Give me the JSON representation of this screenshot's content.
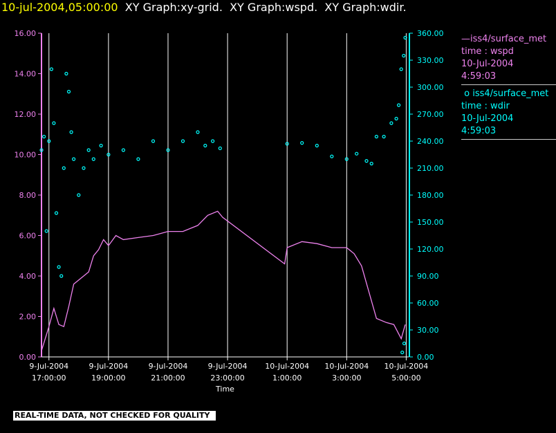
{
  "header": {
    "time": "10-jul-2004,05:00:00",
    "rest": "  XY Graph:xy-grid.  XY Graph:wspd.  XY Graph:wdir."
  },
  "chart_data": {
    "type": "scatter",
    "x_axis": {
      "label": "Time",
      "range": [
        "9-Jul-2004 16:45",
        "10-Jul-2004 05:05"
      ],
      "ticks": [
        {
          "date": "9-Jul-2004",
          "time": "17:00:00",
          "t": "9-Jul-2004 17:00"
        },
        {
          "date": "9-Jul-2004",
          "time": "19:00:00",
          "t": "9-Jul-2004 19:00"
        },
        {
          "date": "9-Jul-2004",
          "time": "21:00:00",
          "t": "9-Jul-2004 21:00"
        },
        {
          "date": "9-Jul-2004",
          "time": "23:00:00",
          "t": "9-Jul-2004 23:00"
        },
        {
          "date": "10-Jul-2004",
          "time": "1:00:00",
          "t": "10-Jul-2004 01:00"
        },
        {
          "date": "10-Jul-2004",
          "time": "3:00:00",
          "t": "10-Jul-2004 03:00"
        },
        {
          "date": "10-Jul-2004",
          "time": "5:00:00",
          "t": "10-Jul-2004 05:00"
        }
      ],
      "gridlines": true
    },
    "y_left": {
      "range": [
        0,
        16
      ],
      "ticks": [
        "0.00",
        "2.00",
        "4.00",
        "6.00",
        "8.00",
        "10.00",
        "12.00",
        "14.00",
        "16.00"
      ],
      "color": "#ee82ee"
    },
    "y_right": {
      "range": [
        0,
        360
      ],
      "ticks": [
        "0.00",
        "30.00",
        "60.00",
        "90.00",
        "120.00",
        "150.00",
        "180.00",
        "210.00",
        "240.00",
        "270.00",
        "300.00",
        "330.00",
        "360.00"
      ],
      "color": "#00ffff"
    },
    "legend_position": "right",
    "series": [
      {
        "name": "iss4/surface_met",
        "field": "time : wspd",
        "date": "10-Jul-2004",
        "time": "4:59:03",
        "axis": "left",
        "color": "#ee82ee",
        "style": "line",
        "points": [
          [
            "9-Jul-2004 16:45",
            0.3
          ],
          [
            "9-Jul-2004 17:00",
            1.5
          ],
          [
            "9-Jul-2004 17:10",
            2.4
          ],
          [
            "9-Jul-2004 17:20",
            1.6
          ],
          [
            "9-Jul-2004 17:30",
            1.5
          ],
          [
            "9-Jul-2004 17:40",
            2.5
          ],
          [
            "9-Jul-2004 17:50",
            3.6
          ],
          [
            "9-Jul-2004 18:00",
            3.8
          ],
          [
            "9-Jul-2004 18:10",
            4.0
          ],
          [
            "9-Jul-2004 18:20",
            4.2
          ],
          [
            "9-Jul-2004 18:30",
            5.0
          ],
          [
            "9-Jul-2004 18:40",
            5.3
          ],
          [
            "9-Jul-2004 18:50",
            5.8
          ],
          [
            "9-Jul-2004 19:00",
            5.5
          ],
          [
            "9-Jul-2004 19:15",
            6.0
          ],
          [
            "9-Jul-2004 19:30",
            5.8
          ],
          [
            "9-Jul-2004 20:00",
            5.9
          ],
          [
            "9-Jul-2004 20:30",
            6.0
          ],
          [
            "9-Jul-2004 21:00",
            6.2
          ],
          [
            "9-Jul-2004 21:30",
            6.2
          ],
          [
            "9-Jul-2004 22:00",
            6.5
          ],
          [
            "9-Jul-2004 22:20",
            7.0
          ],
          [
            "9-Jul-2004 22:40",
            7.2
          ],
          [
            "9-Jul-2004 22:50",
            6.9
          ],
          [
            "10-Jul-2004 00:55",
            4.6
          ],
          [
            "10-Jul-2004 01:00",
            5.4
          ],
          [
            "10-Jul-2004 01:30",
            5.7
          ],
          [
            "10-Jul-2004 02:00",
            5.6
          ],
          [
            "10-Jul-2004 02:30",
            5.4
          ],
          [
            "10-Jul-2004 03:00",
            5.4
          ],
          [
            "10-Jul-2004 03:15",
            5.1
          ],
          [
            "10-Jul-2004 03:30",
            4.5
          ],
          [
            "10-Jul-2004 03:45",
            3.2
          ],
          [
            "10-Jul-2004 04:00",
            1.9
          ],
          [
            "10-Jul-2004 04:20",
            1.7
          ],
          [
            "10-Jul-2004 04:35",
            1.6
          ],
          [
            "10-Jul-2004 04:50",
            0.9
          ],
          [
            "10-Jul-2004 04:58",
            1.6
          ]
        ]
      },
      {
        "name": "iss4/surface_met",
        "field": "time : wdir",
        "date": "10-Jul-2004",
        "time": "4:59:03",
        "axis": "right",
        "color": "#00ffff",
        "style": "circles",
        "points": [
          [
            "9-Jul-2004 16:45",
            230
          ],
          [
            "9-Jul-2004 16:50",
            245
          ],
          [
            "9-Jul-2004 16:55",
            140
          ],
          [
            "9-Jul-2004 17:00",
            240
          ],
          [
            "9-Jul-2004 17:05",
            320
          ],
          [
            "9-Jul-2004 17:10",
            260
          ],
          [
            "9-Jul-2004 17:15",
            160
          ],
          [
            "9-Jul-2004 17:20",
            100
          ],
          [
            "9-Jul-2004 17:25",
            90
          ],
          [
            "9-Jul-2004 17:30",
            210
          ],
          [
            "9-Jul-2004 17:35",
            315
          ],
          [
            "9-Jul-2004 17:40",
            295
          ],
          [
            "9-Jul-2004 17:45",
            250
          ],
          [
            "9-Jul-2004 17:50",
            220
          ],
          [
            "9-Jul-2004 18:00",
            180
          ],
          [
            "9-Jul-2004 18:10",
            210
          ],
          [
            "9-Jul-2004 18:20",
            230
          ],
          [
            "9-Jul-2004 18:30",
            220
          ],
          [
            "9-Jul-2004 18:45",
            235
          ],
          [
            "9-Jul-2004 19:00",
            225
          ],
          [
            "9-Jul-2004 19:30",
            230
          ],
          [
            "9-Jul-2004 20:00",
            220
          ],
          [
            "9-Jul-2004 20:30",
            240
          ],
          [
            "9-Jul-2004 21:00",
            230
          ],
          [
            "9-Jul-2004 21:30",
            240
          ],
          [
            "9-Jul-2004 22:00",
            250
          ],
          [
            "9-Jul-2004 22:15",
            235
          ],
          [
            "9-Jul-2004 22:30",
            240
          ],
          [
            "9-Jul-2004 22:45",
            232
          ],
          [
            "10-Jul-2004 01:00",
            237
          ],
          [
            "10-Jul-2004 01:30",
            238
          ],
          [
            "10-Jul-2004 02:00",
            235
          ],
          [
            "10-Jul-2004 02:30",
            223
          ],
          [
            "10-Jul-2004 03:00",
            220
          ],
          [
            "10-Jul-2004 03:20",
            226
          ],
          [
            "10-Jul-2004 03:40",
            218
          ],
          [
            "10-Jul-2004 03:50",
            215
          ],
          [
            "10-Jul-2004 04:00",
            245
          ],
          [
            "10-Jul-2004 04:15",
            245
          ],
          [
            "10-Jul-2004 04:30",
            260
          ],
          [
            "10-Jul-2004 04:40",
            265
          ],
          [
            "10-Jul-2004 04:45",
            280
          ],
          [
            "10-Jul-2004 04:50",
            320
          ],
          [
            "10-Jul-2004 04:55",
            335
          ],
          [
            "10-Jul-2004 04:58",
            355
          ],
          [
            "10-Jul-2004 04:52",
            5
          ],
          [
            "10-Jul-2004 04:56",
            15
          ]
        ]
      }
    ]
  },
  "quality_note": "REAL-TIME DATA, NOT CHECKED FOR QUALITY"
}
